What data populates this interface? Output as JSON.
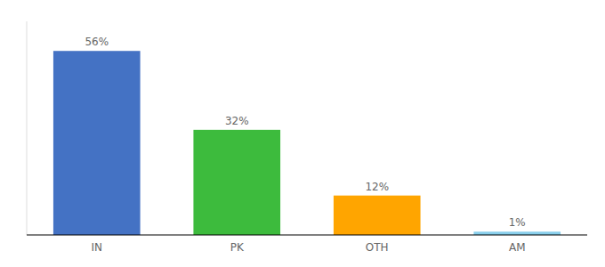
{
  "chart_data": {
    "type": "bar",
    "categories": [
      "IN",
      "PK",
      "OTH",
      "AM"
    ],
    "values": [
      56,
      32,
      12,
      1
    ],
    "value_labels": [
      "56%",
      "32%",
      "12%",
      "1%"
    ],
    "colors": [
      "#4472C4",
      "#3DBB3D",
      "#FFA500",
      "#87CEEB"
    ],
    "ylim": [
      0,
      65
    ],
    "data_labels": true,
    "tick_labels": "x"
  }
}
